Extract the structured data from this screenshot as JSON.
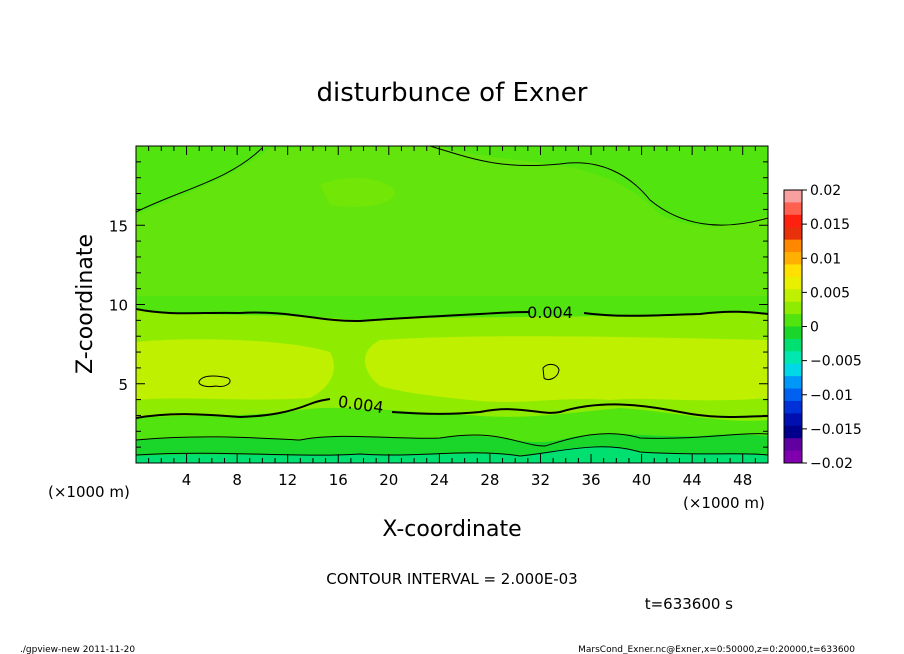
{
  "chart_data": {
    "type": "heatmap",
    "title": "disturbunce of Exner",
    "xlabel": "X-coordinate",
    "ylabel": "Z-coordinate",
    "x_unit": "(×1000 m)",
    "z_unit": "(×1000 m)",
    "xlim": [
      0,
      50
    ],
    "zlim": [
      0,
      20
    ],
    "x_ticks": [
      "4",
      "8",
      "12",
      "16",
      "20",
      "24",
      "28",
      "32",
      "36",
      "40",
      "44",
      "48"
    ],
    "z_ticks": [
      "5",
      "10",
      "15"
    ],
    "x_tick_values": [
      4,
      8,
      12,
      16,
      20,
      24,
      28,
      32,
      36,
      40,
      44,
      48
    ],
    "z_tick_values": [
      5,
      10,
      15
    ],
    "colorbar": {
      "ticks": [
        "0.02",
        "0.015",
        "0.01",
        "0.005",
        "0",
        "−0.005",
        "−0.01",
        "−0.015",
        "−0.02"
      ],
      "colors": [
        "#f8a0a0",
        "#ff6050",
        "#ff2010",
        "#e8300a",
        "#ff8800",
        "#ffb000",
        "#ffe000",
        "#e8f000",
        "#bff000",
        "#8fec00",
        "#52e40e",
        "#1ad62a",
        "#00e070",
        "#00e8b0",
        "#00d8e8",
        "#0098f8",
        "#0060f0",
        "#0030d8",
        "#0010b0",
        "#00008c",
        "#6000a0",
        "#8000b0"
      ]
    },
    "contour_labels": [
      "0.004",
      "0.004"
    ],
    "contour_interval": "CONTOUR INTERVAL = 2.000E-03",
    "time": "t=633600 s"
  },
  "footer": {
    "left": "./gpview-new  2011-11-20",
    "right": "MarsCond_Exner.nc@Exner,x=0:50000,z=0:20000,t=633600"
  }
}
